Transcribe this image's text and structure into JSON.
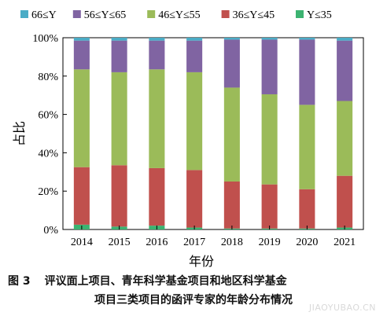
{
  "chart_data": {
    "type": "bar",
    "stacked": true,
    "percent": true,
    "categories": [
      "2014",
      "2015",
      "2016",
      "2017",
      "2018",
      "2019",
      "2020",
      "2021"
    ],
    "series": [
      {
        "name": "Y≤35",
        "color": "#3cb371",
        "values": [
          2.5,
          1.5,
          2.0,
          1.0,
          0.5,
          0.5,
          0.5,
          1.0
        ]
      },
      {
        "name": "36≤Y≤45",
        "color": "#c0504d",
        "values": [
          30.0,
          32.0,
          30.0,
          30.0,
          24.5,
          23.0,
          20.5,
          27.0
        ]
      },
      {
        "name": "46≤Y≤55",
        "color": "#9bbb59",
        "values": [
          51.0,
          48.5,
          51.5,
          51.0,
          49.0,
          47.0,
          44.0,
          39.0
        ]
      },
      {
        "name": "56≤Y≤65",
        "color": "#8064a2",
        "values": [
          15.0,
          16.5,
          15.0,
          16.5,
          25.0,
          28.5,
          34.0,
          31.5
        ]
      },
      {
        "name": "66≤Y",
        "color": "#4bacc6",
        "values": [
          1.5,
          1.5,
          1.5,
          1.5,
          1.0,
          1.0,
          1.0,
          1.5
        ]
      }
    ],
    "ylim": [
      0,
      100
    ],
    "yticks": [
      "0%",
      "20%",
      "40%",
      "60%",
      "80%",
      "100%"
    ],
    "xlabel": "年份",
    "ylabel": "占比",
    "legend_order": [
      "66≤Y",
      "56≤Y≤65",
      "46≤Y≤55",
      "36≤Y≤45",
      "Y≤35"
    ],
    "legend_position": "top"
  },
  "caption": {
    "number": "图 3",
    "line1": "评议面上项目、青年科学基金项目和地区科学基金",
    "line2": "项目三类项目的函评专家的年龄分布情况"
  },
  "watermark": {
    "text": "JIAOYUBAO.CN"
  }
}
